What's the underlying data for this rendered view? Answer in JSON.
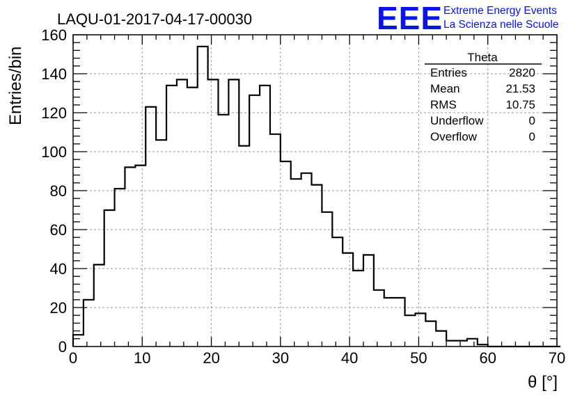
{
  "title": "LAQU-01-2017-04-17-00030",
  "logo": {
    "mark": "EEE",
    "line1": "Extreme Energy Events",
    "line2": "La Scienza nelle Scuole",
    "color": "#0a14e6"
  },
  "stats": {
    "name": "Theta",
    "rows": [
      {
        "label": "Entries",
        "value": "2820"
      },
      {
        "label": "Mean",
        "value": "21.53"
      },
      {
        "label": "RMS",
        "value": "10.75"
      },
      {
        "label": "Underflow",
        "value": "0"
      },
      {
        "label": "Overflow",
        "value": "0"
      }
    ]
  },
  "chart_data": {
    "type": "histogram",
    "title": "LAQU-01-2017-04-17-00030",
    "xlabel": "θ [°]",
    "ylabel": "Entries/bin",
    "xlim": [
      0,
      70
    ],
    "ylim": [
      0,
      160
    ],
    "xticks": [
      0,
      10,
      20,
      30,
      40,
      50,
      60,
      70
    ],
    "yticks": [
      0,
      20,
      40,
      60,
      80,
      100,
      120,
      140,
      160
    ],
    "grid": true,
    "bin_width": 1.5,
    "bin_edges_start": 0,
    "values": [
      6,
      24,
      42,
      70,
      81,
      92,
      93,
      123,
      106,
      134,
      137,
      133,
      154,
      137,
      119,
      137,
      103,
      129,
      134,
      109,
      95,
      86,
      89,
      83,
      69,
      56,
      48,
      39,
      47,
      29,
      25,
      25,
      16,
      17,
      13,
      8,
      3,
      3,
      4,
      1,
      0,
      0,
      0,
      0,
      0,
      0,
      0
    ]
  }
}
